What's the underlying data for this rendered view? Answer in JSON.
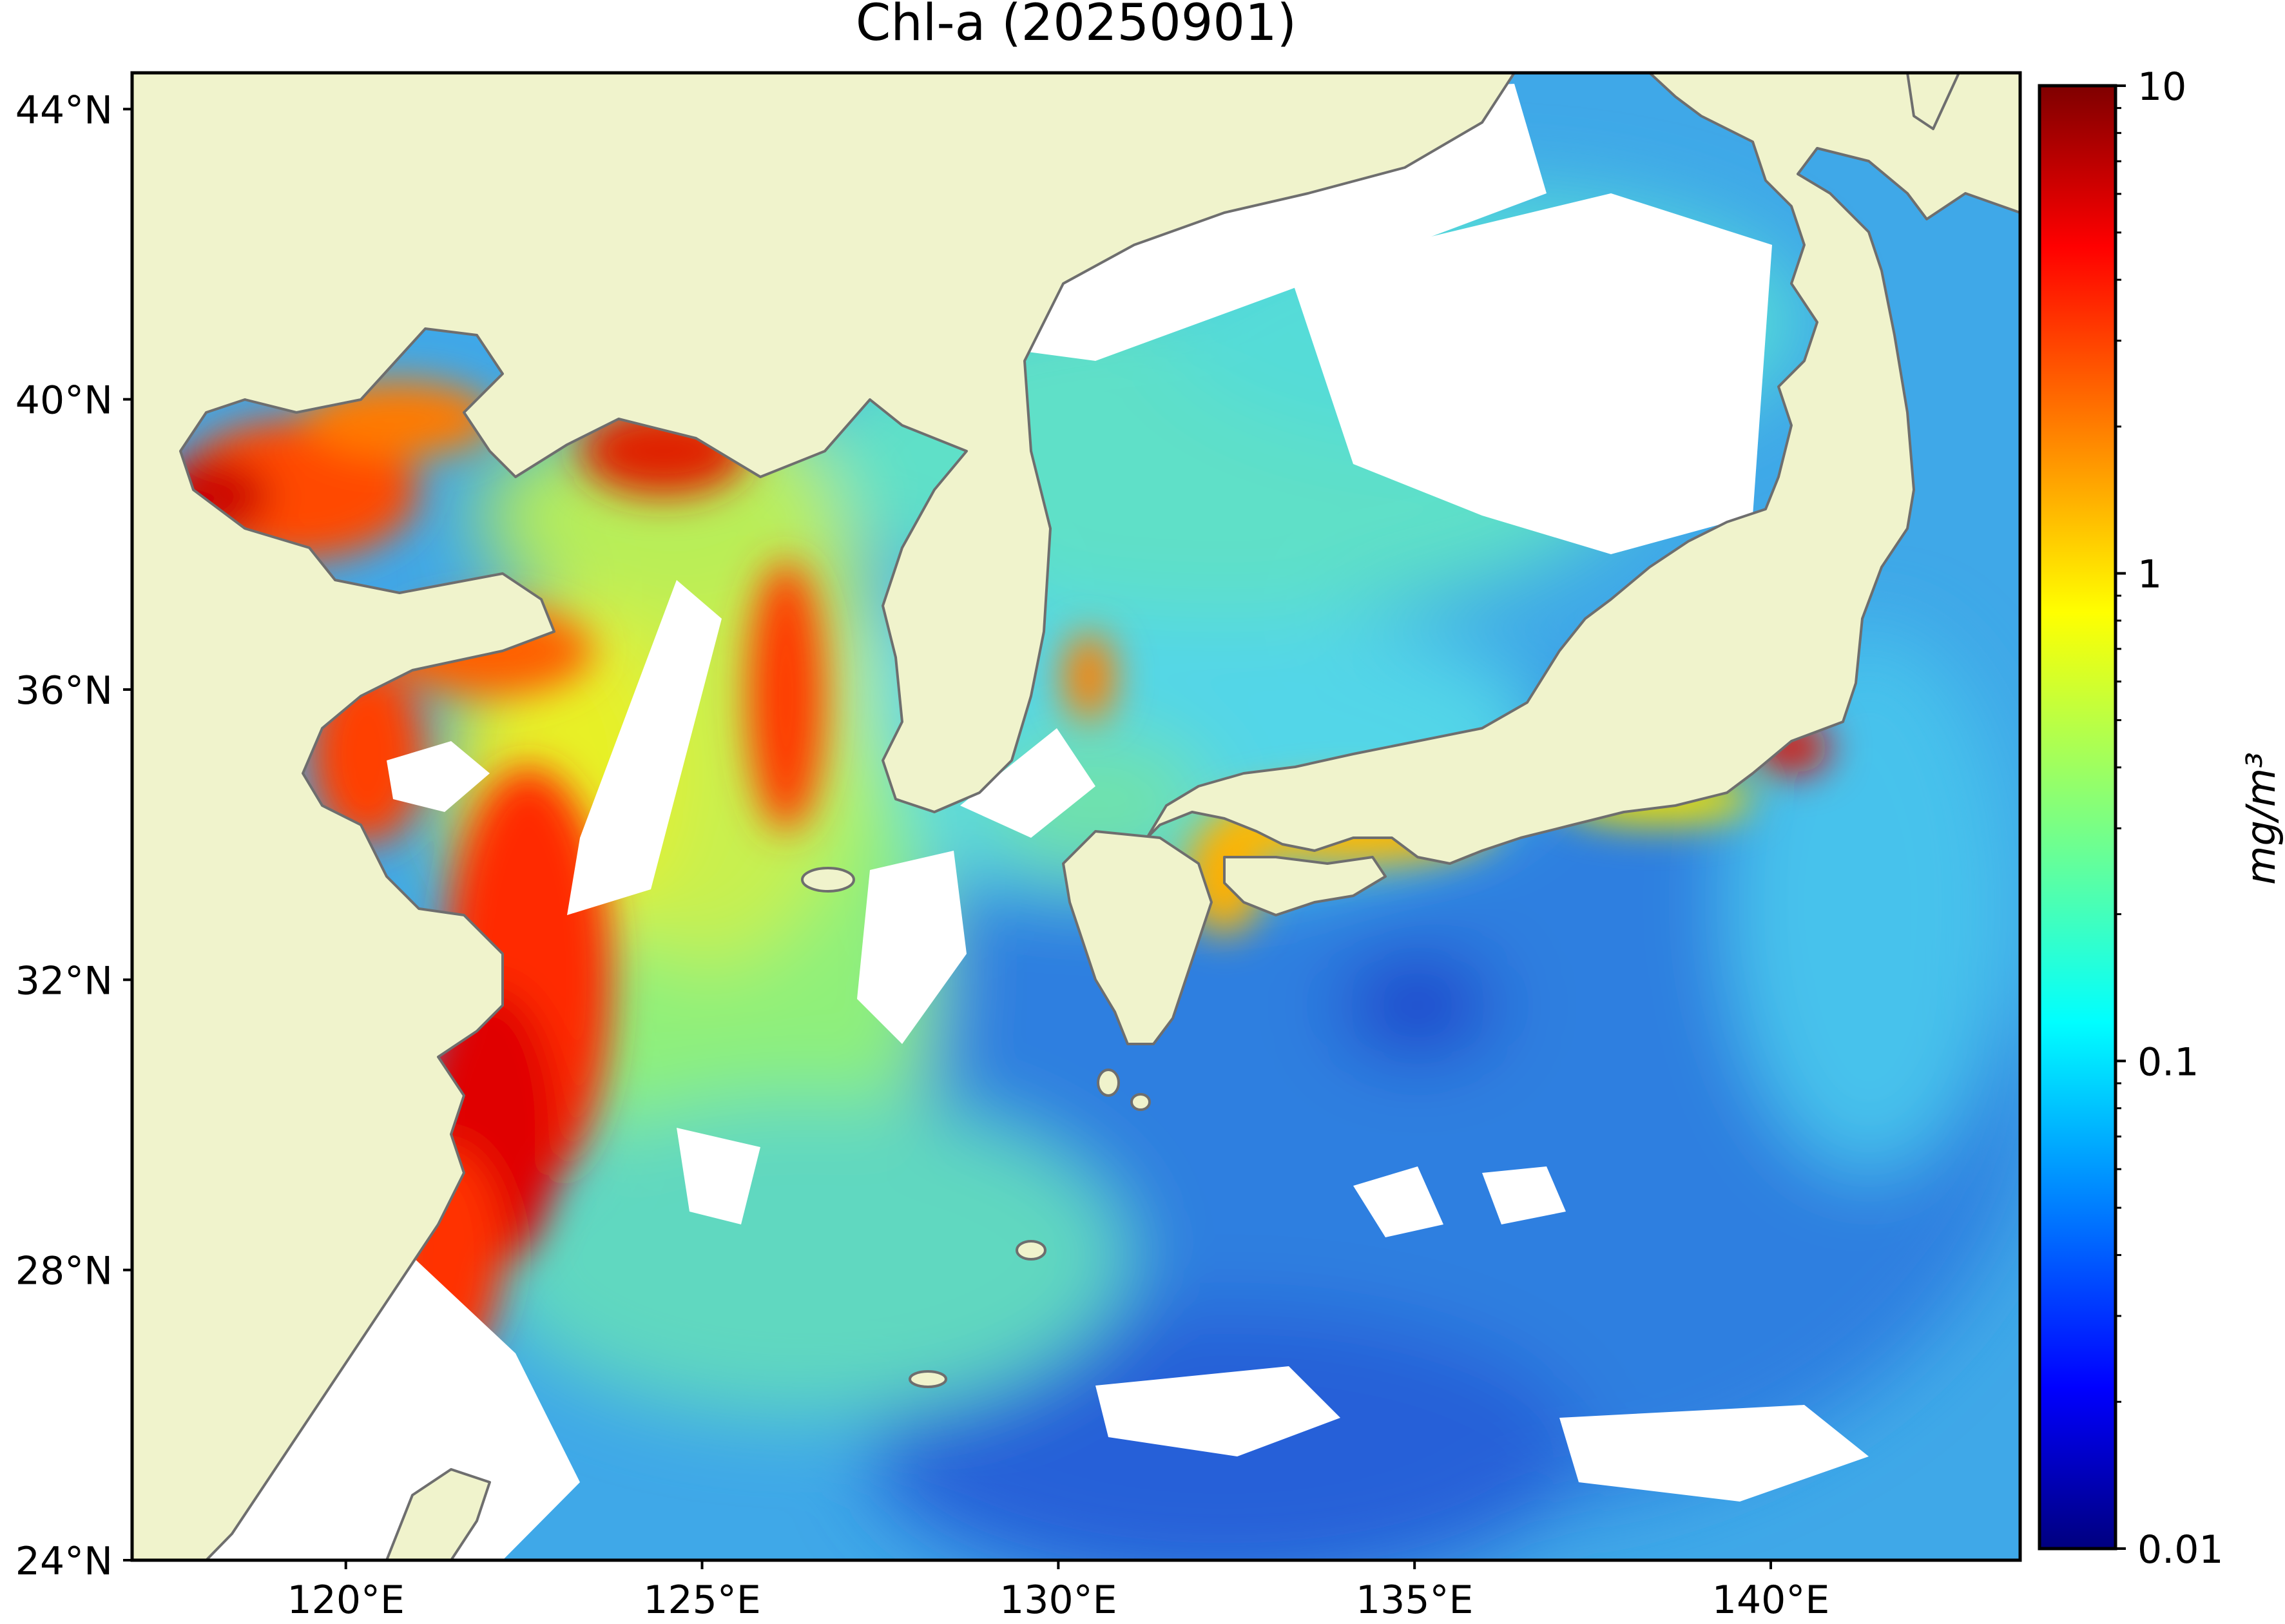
{
  "title": "Chl-a (20250901)",
  "map": {
    "lon_range": [
      117,
      143.5
    ],
    "lat_range": [
      24,
      44.5
    ],
    "lat_ticks": [
      {
        "value": 44,
        "label": "44°N"
      },
      {
        "value": 40,
        "label": "40°N"
      },
      {
        "value": 36,
        "label": "36°N"
      },
      {
        "value": 32,
        "label": "32°N"
      },
      {
        "value": 28,
        "label": "28°N"
      },
      {
        "value": 24,
        "label": "24°N"
      }
    ],
    "lon_ticks": [
      {
        "value": 120,
        "label": "120°E"
      },
      {
        "value": 125,
        "label": "125°E"
      },
      {
        "value": 130,
        "label": "130°E"
      },
      {
        "value": 135,
        "label": "135°E"
      },
      {
        "value": 140,
        "label": "140°E"
      }
    ],
    "colors": {
      "land": "#F0F3CC",
      "coastline": "#6E6E6E",
      "no_data": "#FFFFFF"
    }
  },
  "colorbar": {
    "label": "mg/m³",
    "scale": "log",
    "range": [
      0.01,
      10
    ],
    "colormap": "jet",
    "ticks": [
      {
        "value": 10,
        "label": "10"
      },
      {
        "value": 1,
        "label": "1"
      },
      {
        "value": 0.1,
        "label": "0.1"
      },
      {
        "value": 0.01,
        "label": "0.01"
      }
    ]
  }
}
